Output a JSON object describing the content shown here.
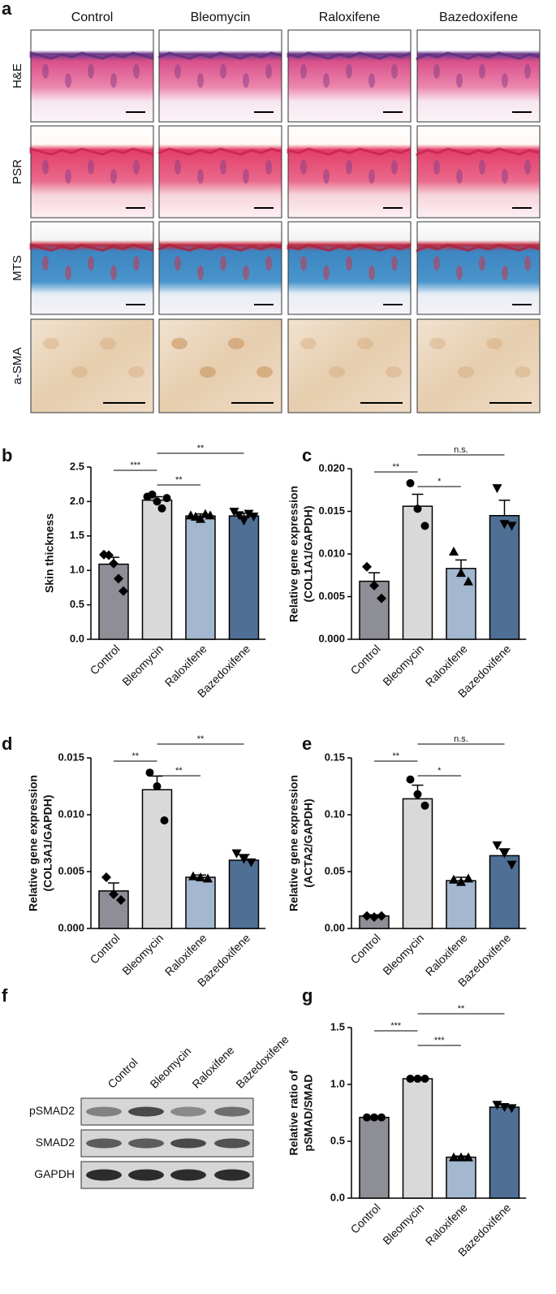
{
  "panel_labels": [
    "a",
    "b",
    "c",
    "d",
    "e",
    "f",
    "g"
  ],
  "histology": {
    "columns": [
      "Control",
      "Bleomycin",
      "Raloxifene",
      "Bazedoxifene"
    ],
    "rows": [
      "H&E",
      "PSR",
      "MTS",
      "a-SMA"
    ]
  },
  "western_blot": {
    "lanes": [
      "Control",
      "Bleomycin",
      "Raloxifene",
      "Bazedoxifene"
    ],
    "bands": [
      "pSMAD2",
      "SMAD2",
      "GAPDH"
    ]
  },
  "chart_data": [
    {
      "type": "bar",
      "ylabel": [
        "Skin thickness"
      ],
      "categories": [
        "Control",
        "Bleomycin",
        "Raloxifene",
        "Bazedoxifene"
      ],
      "colors": [
        "#8e8e96",
        "#d9d9d9",
        "#a3b8cf",
        "#4f6f94"
      ],
      "markers": [
        "diamond",
        "circle",
        "triangle-up",
        "triangle-down"
      ],
      "values": [
        1.09,
        2.02,
        1.79,
        1.79
      ],
      "errors": [
        0.1,
        0.05,
        0.03,
        0.04
      ],
      "points": [
        [
          1.23,
          1.22,
          1.1,
          0.88,
          0.7
        ],
        [
          2.07,
          2.1,
          2.0,
          1.9,
          2.05
        ],
        [
          1.8,
          1.78,
          1.75,
          1.82,
          1.8
        ],
        [
          1.85,
          1.8,
          1.72,
          1.82,
          1.78
        ]
      ],
      "ylim": [
        0,
        2.5
      ],
      "yticks": [
        {
          "value": 0,
          "label": "0.0"
        },
        0.5,
        {
          "value": 1,
          "label": "1.0"
        },
        1.5,
        {
          "value": 2,
          "label": "2.0"
        },
        2.5
      ],
      "significance": [
        {
          "pair": [
            "Control",
            "Bleomycin"
          ],
          "label": "***"
        },
        {
          "pair": [
            "Bleomycin",
            "Raloxifene"
          ],
          "label": "**"
        },
        {
          "pair": [
            "Bleomycin",
            "Bazedoxifene"
          ],
          "label": "**"
        }
      ]
    },
    {
      "type": "bar",
      "ylabel": [
        "Relative gene expression",
        "(COL1A1/GAPDH)"
      ],
      "categories": [
        "Control",
        "Bleomycin",
        "Raloxifene",
        "Bazedoxifene"
      ],
      "colors": [
        "#8e8e96",
        "#d9d9d9",
        "#a3b8cf",
        "#4f6f94"
      ],
      "markers": [
        "diamond",
        "circle",
        "triangle-up",
        "triangle-down"
      ],
      "values": [
        0.0068,
        0.0156,
        0.0083,
        0.0145
      ],
      "errors": [
        0.001,
        0.0014,
        0.001,
        0.0018
      ],
      "points": [
        [
          0.0085,
          0.0063,
          0.0048
        ],
        [
          0.0183,
          0.0153,
          0.0133
        ],
        [
          0.0103,
          0.0078,
          0.0068
        ],
        [
          0.0177,
          0.0135,
          0.0133
        ]
      ],
      "ylim": [
        0,
        0.02
      ],
      "yticks": [
        {
          "value": 0,
          "label": "0.000"
        },
        0.005,
        {
          "value": 0.01,
          "label": "0.010"
        },
        0.015,
        {
          "value": 0.02,
          "label": "0.020"
        }
      ],
      "significance": [
        {
          "pair": [
            "Control",
            "Bleomycin"
          ],
          "label": "**"
        },
        {
          "pair": [
            "Bleomycin",
            "Raloxifene"
          ],
          "label": "*"
        },
        {
          "pair": [
            "Bleomycin",
            "Bazedoxifene"
          ],
          "label": "n.s."
        }
      ]
    },
    {
      "type": "bar",
      "ylabel": [
        "Relative gene expression",
        "(COL3A1/GAPDH)"
      ],
      "categories": [
        "Control",
        "Bleomycin",
        "Raloxifene",
        "Bazedoxifene"
      ],
      "colors": [
        "#8e8e96",
        "#d9d9d9",
        "#a3b8cf",
        "#4f6f94"
      ],
      "markers": [
        "diamond",
        "circle",
        "triangle-up",
        "triangle-down"
      ],
      "values": [
        0.0033,
        0.0122,
        0.0045,
        0.006
      ],
      "errors": [
        0.0007,
        0.0012,
        0.0002,
        0.0005
      ],
      "points": [
        [
          0.0045,
          0.003,
          0.0025
        ],
        [
          0.0137,
          0.0125,
          0.0095
        ],
        [
          0.0046,
          0.0045,
          0.0044
        ],
        [
          0.0066,
          0.0061,
          0.0058
        ]
      ],
      "ylim": [
        0,
        0.015
      ],
      "yticks": [
        {
          "value": 0,
          "label": "0.000"
        },
        0.005,
        {
          "value": 0.01,
          "label": "0.010"
        },
        0.015
      ],
      "significance": [
        {
          "pair": [
            "Control",
            "Bleomycin"
          ],
          "label": "**"
        },
        {
          "pair": [
            "Bleomycin",
            "Raloxifene"
          ],
          "label": "**"
        },
        {
          "pair": [
            "Bleomycin",
            "Bazedoxifene"
          ],
          "label": "**"
        }
      ]
    },
    {
      "type": "bar",
      "ylabel": [
        "Relative gene expression",
        "(ACTA2/GAPDH)"
      ],
      "categories": [
        "Control",
        "Bleomycin",
        "Raloxifene",
        "Bazedoxifene"
      ],
      "colors": [
        "#8e8e96",
        "#d9d9d9",
        "#a3b8cf",
        "#4f6f94"
      ],
      "markers": [
        "diamond",
        "circle",
        "triangle-up",
        "triangle-down"
      ],
      "values": [
        0.011,
        0.114,
        0.042,
        0.064
      ],
      "errors": [
        0.001,
        0.012,
        0.003,
        0.006
      ],
      "points": [
        [
          0.011,
          0.01,
          0.011
        ],
        [
          0.131,
          0.118,
          0.108
        ],
        [
          0.043,
          0.041,
          0.044
        ],
        [
          0.073,
          0.066,
          0.056
        ]
      ],
      "ylim": [
        0,
        0.15
      ],
      "yticks": [
        {
          "value": 0,
          "label": "0.00"
        },
        0.05,
        {
          "value": 0.1,
          "label": "0.10"
        },
        0.15
      ],
      "significance": [
        {
          "pair": [
            "Control",
            "Bleomycin"
          ],
          "label": "**"
        },
        {
          "pair": [
            "Bleomycin",
            "Raloxifene"
          ],
          "label": "*"
        },
        {
          "pair": [
            "Bleomycin",
            "Bazedoxifene"
          ],
          "label": "n.s."
        }
      ]
    },
    {
      "type": "bar",
      "ylabel": [
        "Relative ratio of",
        "pSMAD/SMAD"
      ],
      "categories": [
        "Control",
        "Bleomycin",
        "Raloxifene",
        "Bazedoxifene"
      ],
      "colors": [
        "#8e8e96",
        "#d9d9d9",
        "#a3b8cf",
        "#4f6f94"
      ],
      "markers": [
        "circle",
        "circle",
        "triangle-up",
        "triangle-down"
      ],
      "values": [
        0.71,
        1.05,
        0.36,
        0.8
      ],
      "errors": [
        0.005,
        0.005,
        0.01,
        0.02
      ],
      "points": [
        [
          0.71,
          0.71,
          0.71
        ],
        [
          1.05,
          1.05,
          1.05
        ],
        [
          0.36,
          0.36,
          0.36
        ],
        [
          0.82,
          0.8,
          0.79
        ]
      ],
      "ylim": [
        0,
        1.5
      ],
      "yticks": [
        {
          "value": 0,
          "label": "0.0"
        },
        0.5,
        {
          "value": 1,
          "label": "1.0"
        },
        1.5
      ],
      "significance": [
        {
          "pair": [
            "Control",
            "Bleomycin"
          ],
          "label": "***"
        },
        {
          "pair": [
            "Bleomycin",
            "Raloxifene"
          ],
          "label": "***"
        },
        {
          "pair": [
            "Bleomycin",
            "Bazedoxifene"
          ],
          "label": "**"
        }
      ]
    }
  ]
}
